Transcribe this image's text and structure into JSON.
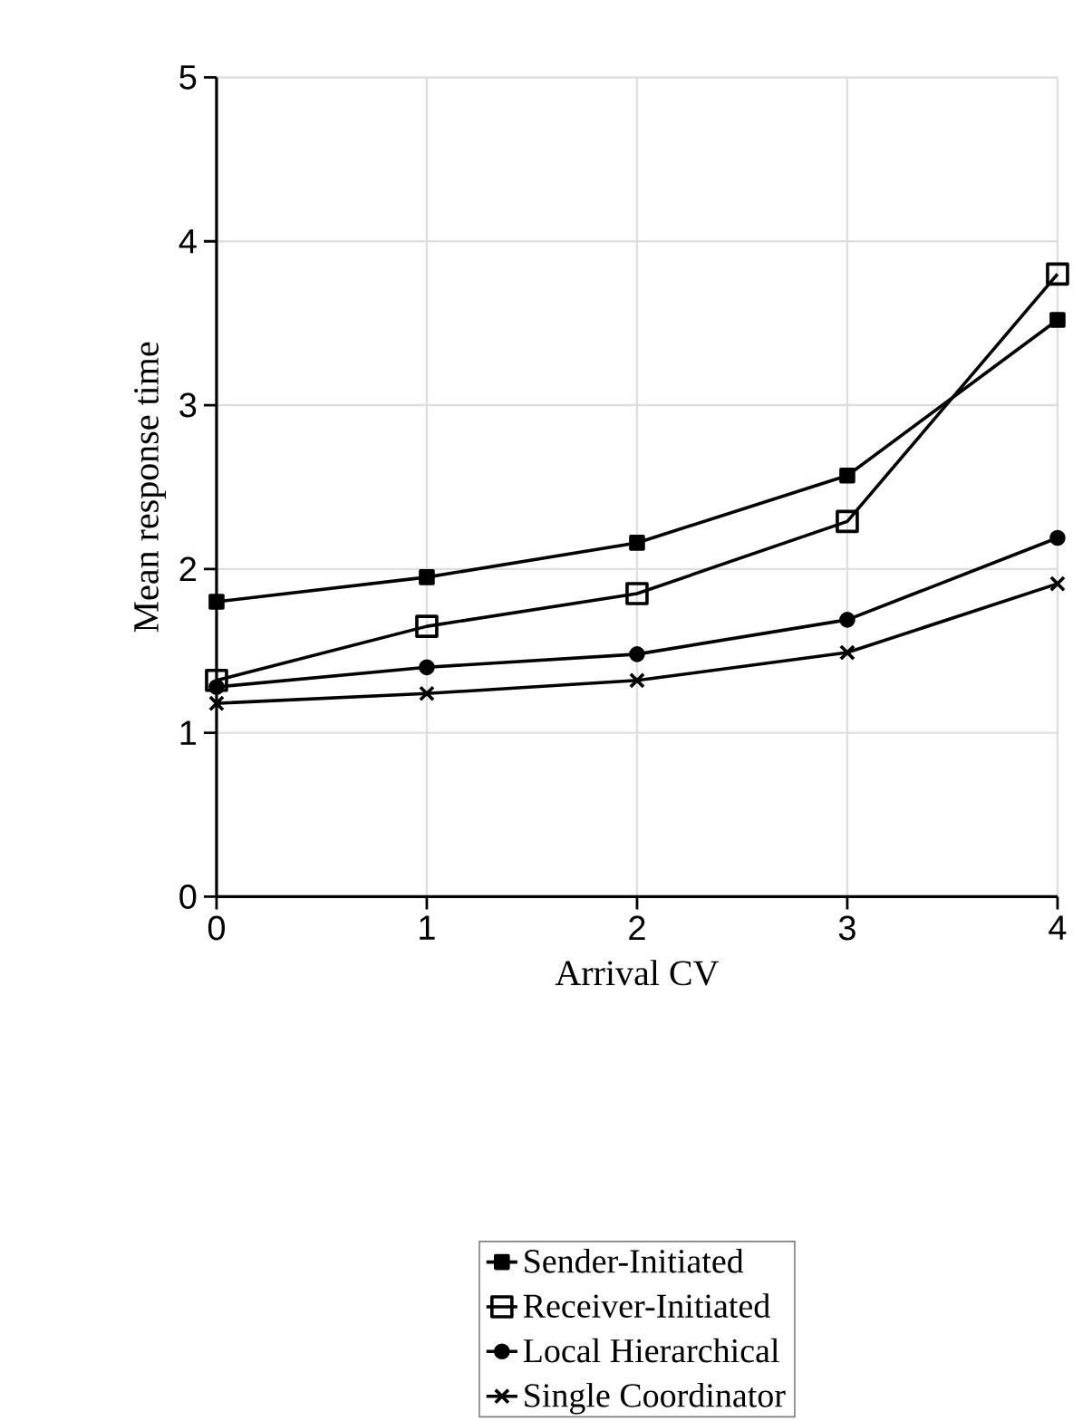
{
  "chart_data": {
    "type": "line",
    "xlabel": "Arrival CV",
    "ylabel": "Mean response time",
    "x": [
      0,
      1,
      2,
      3,
      4
    ],
    "xlim": [
      0,
      4
    ],
    "xticks": [
      0,
      1,
      2,
      3,
      4
    ],
    "ylim": [
      0,
      5
    ],
    "yticks": [
      0,
      1,
      2,
      3,
      4,
      5
    ],
    "grid": true,
    "legend": "bottom",
    "series": [
      {
        "name": "Sender-Initiated",
        "color": "#000000",
        "marker": "square",
        "values": [
          1.8,
          1.95,
          2.16,
          2.57,
          3.52
        ]
      },
      {
        "name": "Receiver-Initiated",
        "color": "#000000",
        "marker": "square",
        "values": [
          1.32,
          1.65,
          1.85,
          2.29,
          3.8
        ]
      },
      {
        "name": "Local Hierarchical",
        "color": "#000000",
        "marker": "circle",
        "values": [
          1.28,
          1.4,
          1.48,
          1.69,
          2.19
        ]
      },
      {
        "name": "Single Coordinator",
        "color": "#000000",
        "marker": "cross",
        "values": [
          1.18,
          1.24,
          1.32,
          1.49,
          1.91
        ]
      }
    ]
  }
}
